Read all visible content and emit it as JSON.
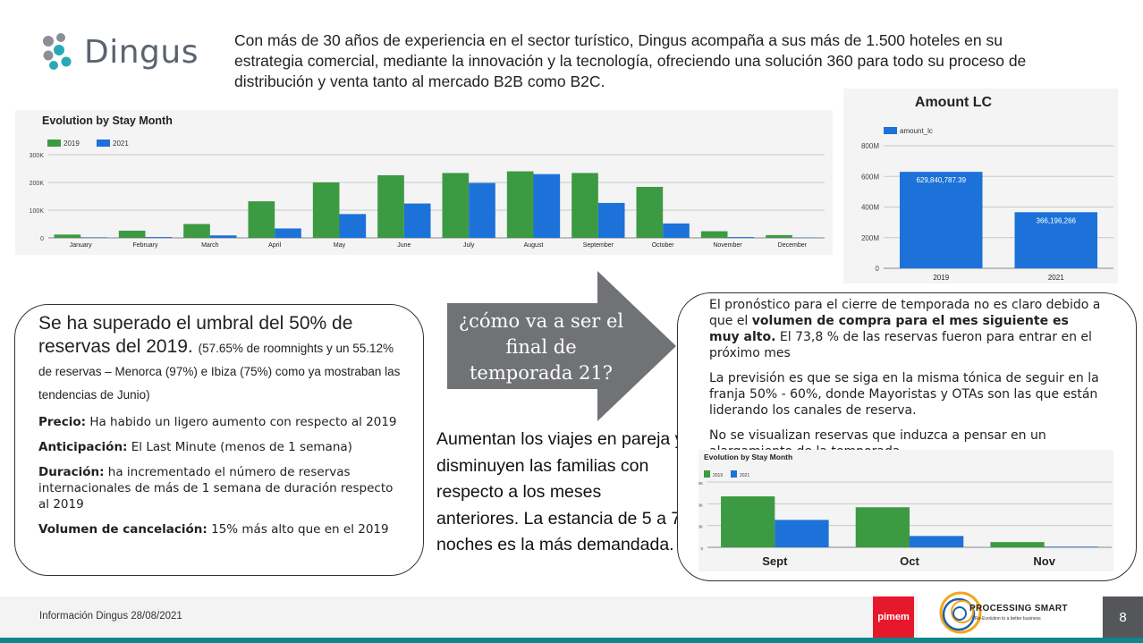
{
  "brand": {
    "name": "Dingus"
  },
  "intro": {
    "text": "Con más de 30 años de experiencia en el sector turístico, Dingus acompaña a sus más de 1.500 hoteles en su estrategia comercial, mediante la innovación y la tecnología, ofreciendo una solución 360 para todo su proceso de distribución y venta tanto al mercado B2B como B2C."
  },
  "chart_data": [
    {
      "id": "stay",
      "type": "bar",
      "title": "Evolution by Stay Month",
      "categories": [
        "January",
        "February",
        "March",
        "April",
        "May",
        "June",
        "July",
        "August",
        "September",
        "October",
        "November",
        "December"
      ],
      "series": [
        {
          "name": "2019",
          "color": "#3c9a42",
          "values": [
            12000,
            26000,
            50000,
            132000,
            200000,
            226000,
            234000,
            240000,
            234000,
            184000,
            24000,
            10000
          ]
        },
        {
          "name": "2021",
          "color": "#1c72d8",
          "values": [
            2000,
            3000,
            9000,
            34000,
            86000,
            124000,
            198000,
            230000,
            126000,
            52000,
            3000,
            1000
          ]
        }
      ],
      "yticks": [
        "0",
        "100K",
        "200K",
        "300K"
      ],
      "ylim": [
        0,
        300000
      ],
      "legend": "top-left",
      "grid": true
    },
    {
      "id": "amount",
      "type": "bar",
      "title": "Amount LC",
      "categories": [
        "2019",
        "2021"
      ],
      "series": [
        {
          "name": "amount_lc",
          "color": "#1c72d8",
          "values": [
            629840787.39,
            366196266
          ]
        }
      ],
      "data_labels": [
        "629,840,787.39",
        "366,196,266"
      ],
      "yticks": [
        "0",
        "200M",
        "400M",
        "600M",
        "800M"
      ],
      "ylim": [
        0,
        800000000
      ],
      "legend": "top-left",
      "grid": true
    },
    {
      "id": "stay_small",
      "type": "bar",
      "title": "Evolution by Stay Month",
      "categories": [
        "Sept",
        "Oct",
        "Nov"
      ],
      "series": [
        {
          "name": "2019",
          "color": "#3c9a42",
          "values": [
            234000,
            184000,
            24000
          ]
        },
        {
          "name": "2021",
          "color": "#1c72d8",
          "values": [
            126000,
            52000,
            3000
          ]
        }
      ],
      "yticks": [
        "0",
        "100K",
        "200K",
        "300K"
      ],
      "ylim": [
        0,
        300000
      ],
      "legend": "top-left",
      "grid": true
    }
  ],
  "left_box": {
    "headline": "Se ha superado el umbral del 50% de reservas del 2019.",
    "headline_note": "(57.65% de roomnights y un 55.12% de reservas – Menorca (97%) e Ibiza (75%) como ya mostraban las tendencias de Junio)",
    "items": [
      {
        "label": "Precio:",
        "text": "Ha habido un ligero aumento con respecto al 2019"
      },
      {
        "label": "Anticipación:",
        "text": "El Last Minute (menos de 1 semana)"
      },
      {
        "label": "Duración:",
        "text": "ha incrementado el número de reservas internacionales de más de 1 semana de duración respecto al 2019"
      },
      {
        "label": "Volumen de cancelación:",
        "text": "15% más alto que en el 2019"
      }
    ]
  },
  "arrow": {
    "text": "¿cómo va a ser el final de temporada 21?"
  },
  "middle_text": "Aumentan los viajes en pareja y disminuyen las familias con respecto a los meses anteriores. La estancia de 5 a 7 noches es la más demandada.",
  "right_box": {
    "p1_before": "El pronóstico para el cierre de temporada no es claro debido a que el ",
    "p1_bold": "volumen de compra para el mes siguiente es muy alto.",
    "p1_after": " El 73,8 % de las reservas fueron para entrar en el próximo mes",
    "p2": "La previsión es que se siga en la misma tónica de seguir en la franja 50% - 60%, donde Mayoristas y OTAs son las que están liderando los canales de reserva.",
    "p3": "No se visualizan reservas que induzca a pensar en un alargamiento de la temporada."
  },
  "footer": {
    "info": "Información Dingus 28/08/2021",
    "pimem": "pimem",
    "partner_title": "PROCESSING SMART",
    "partner_tagline": "Re-Evolution to a better business",
    "page": "8"
  },
  "colors": {
    "green": "#3c9a42",
    "blue": "#1c72d8",
    "teal": "#10868d",
    "arrow": "#707275"
  }
}
